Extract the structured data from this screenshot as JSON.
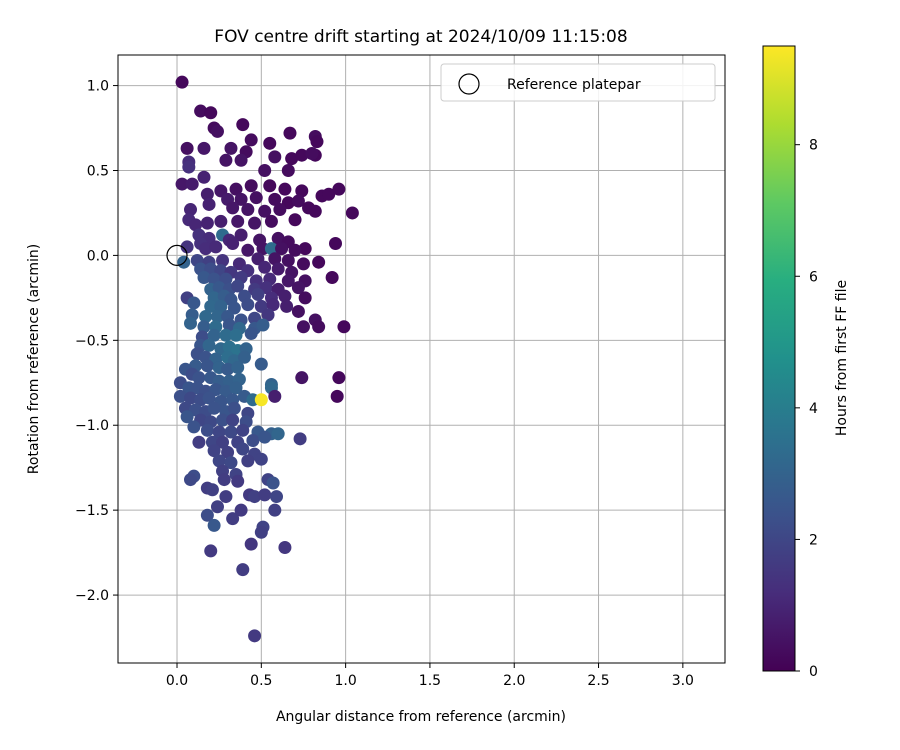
{
  "chart_data": {
    "type": "scatter",
    "title": "FOV centre drift starting at 2024/10/09 11:15:08",
    "xlabel": "Angular distance from reference (arcmin)",
    "ylabel": "Rotation from reference (arcmin)",
    "xlim": [
      -0.35,
      3.25
    ],
    "ylim": [
      -2.4,
      1.18
    ],
    "xticks": [
      0.0,
      0.5,
      1.0,
      1.5,
      2.0,
      2.5,
      3.0
    ],
    "xtick_labels": [
      "0.0",
      "0.5",
      "1.0",
      "1.5",
      "2.0",
      "2.5",
      "3.0"
    ],
    "yticks": [
      1.0,
      0.5,
      0.0,
      -0.5,
      -1.0,
      -1.5,
      -2.0
    ],
    "ytick_labels": [
      "1.0",
      "0.5",
      "0.0",
      "−0.5",
      "−1.0",
      "−1.5",
      "−2.0"
    ],
    "grid": true,
    "legend": {
      "position": "upper right",
      "entries": [
        {
          "label": "Reference platepar",
          "marker": "open circle",
          "x": 0.0,
          "y": 0.0
        }
      ]
    },
    "colorbar": {
      "label": "Hours from first FF file",
      "colormap": "viridis",
      "range": [
        0,
        9.5
      ],
      "ticks": [
        0,
        2,
        4,
        6,
        8
      ],
      "tick_labels": [
        "0",
        "2",
        "4",
        "6",
        "8"
      ]
    },
    "points": [
      [
        0.03,
        1.02,
        0.2
      ],
      [
        0.14,
        0.85,
        0.3
      ],
      [
        0.2,
        0.84,
        0.2
      ],
      [
        0.22,
        0.75,
        0.3
      ],
      [
        0.24,
        0.73,
        0.4
      ],
      [
        0.39,
        0.77,
        0.2
      ],
      [
        0.67,
        0.72,
        0.2
      ],
      [
        0.82,
        0.7,
        0.3
      ],
      [
        0.83,
        0.67,
        0.2
      ],
      [
        0.32,
        0.63,
        0.5
      ],
      [
        0.41,
        0.61,
        0.3
      ],
      [
        0.06,
        0.63,
        0.4
      ],
      [
        0.16,
        0.63,
        0.6
      ],
      [
        0.44,
        0.68,
        0.3
      ],
      [
        0.55,
        0.66,
        0.2
      ],
      [
        0.58,
        0.58,
        0.4
      ],
      [
        0.68,
        0.57,
        0.2
      ],
      [
        0.74,
        0.59,
        0.2
      ],
      [
        0.82,
        0.59,
        0.2
      ],
      [
        0.8,
        0.6,
        0.3
      ],
      [
        0.07,
        0.55,
        1.2
      ],
      [
        0.07,
        0.52,
        1.3
      ],
      [
        0.29,
        0.56,
        0.5
      ],
      [
        0.38,
        0.56,
        0.5
      ],
      [
        0.52,
        0.5,
        0.4
      ],
      [
        0.66,
        0.5,
        0.3
      ],
      [
        0.03,
        0.42,
        0.6
      ],
      [
        0.09,
        0.42,
        0.7
      ],
      [
        0.16,
        0.46,
        0.9
      ],
      [
        0.26,
        0.38,
        0.6
      ],
      [
        0.35,
        0.39,
        0.4
      ],
      [
        0.44,
        0.41,
        0.3
      ],
      [
        0.55,
        0.41,
        0.2
      ],
      [
        0.64,
        0.39,
        0.2
      ],
      [
        0.74,
        0.38,
        0.2
      ],
      [
        0.86,
        0.35,
        0.2
      ],
      [
        0.9,
        0.36,
        0.2
      ],
      [
        0.96,
        0.39,
        0.2
      ],
      [
        0.18,
        0.36,
        0.8
      ],
      [
        0.3,
        0.33,
        0.7
      ],
      [
        0.38,
        0.33,
        0.5
      ],
      [
        0.47,
        0.34,
        0.4
      ],
      [
        0.58,
        0.33,
        0.3
      ],
      [
        0.66,
        0.31,
        0.2
      ],
      [
        0.72,
        0.32,
        0.3
      ],
      [
        0.08,
        0.27,
        1.0
      ],
      [
        0.19,
        0.3,
        0.9
      ],
      [
        0.33,
        0.28,
        0.6
      ],
      [
        0.42,
        0.27,
        0.5
      ],
      [
        0.52,
        0.26,
        0.4
      ],
      [
        0.61,
        0.27,
        0.3
      ],
      [
        0.78,
        0.28,
        0.2
      ],
      [
        0.82,
        0.26,
        0.2
      ],
      [
        1.04,
        0.25,
        0.2
      ],
      [
        0.07,
        0.21,
        1.1
      ],
      [
        0.11,
        0.18,
        1.0
      ],
      [
        0.18,
        0.19,
        0.9
      ],
      [
        0.26,
        0.2,
        0.8
      ],
      [
        0.36,
        0.2,
        0.6
      ],
      [
        0.46,
        0.19,
        0.5
      ],
      [
        0.56,
        0.2,
        0.3
      ],
      [
        0.7,
        0.21,
        0.2
      ],
      [
        0.13,
        0.12,
        1.3
      ],
      [
        0.19,
        0.1,
        1.2
      ],
      [
        0.27,
        0.12,
        3.3
      ],
      [
        0.31,
        0.09,
        1.0
      ],
      [
        0.38,
        0.12,
        0.8
      ],
      [
        0.49,
        0.09,
        0.5
      ],
      [
        0.6,
        0.1,
        0.4
      ],
      [
        0.66,
        0.08,
        0.3
      ],
      [
        0.76,
        0.04,
        0.2
      ],
      [
        0.94,
        0.07,
        0.2
      ],
      [
        0.06,
        0.05,
        1.4
      ],
      [
        0.14,
        0.07,
        1.3
      ],
      [
        0.17,
        0.04,
        1.2
      ],
      [
        0.23,
        0.05,
        1.1
      ],
      [
        0.33,
        0.07,
        0.9
      ],
      [
        0.42,
        0.03,
        0.6
      ],
      [
        0.51,
        0.04,
        0.5
      ],
      [
        0.56,
        0.04,
        3.3
      ],
      [
        0.62,
        0.04,
        0.4
      ],
      [
        0.7,
        0.03,
        0.3
      ],
      [
        0.04,
        -0.04,
        3.0
      ],
      [
        0.12,
        -0.03,
        2.0
      ],
      [
        0.19,
        -0.04,
        1.8
      ],
      [
        0.27,
        -0.03,
        1.4
      ],
      [
        0.37,
        -0.05,
        1.1
      ],
      [
        0.48,
        -0.02,
        0.8
      ],
      [
        0.58,
        -0.02,
        0.5
      ],
      [
        0.66,
        -0.03,
        0.4
      ],
      [
        0.75,
        -0.05,
        0.3
      ],
      [
        0.84,
        -0.04,
        0.2
      ],
      [
        0.14,
        -0.08,
        2.4
      ],
      [
        0.2,
        -0.08,
        2.2
      ],
      [
        0.26,
        -0.09,
        2.0
      ],
      [
        0.32,
        -0.1,
        1.5
      ],
      [
        0.42,
        -0.09,
        1.3
      ],
      [
        0.52,
        -0.07,
        1.0
      ],
      [
        0.6,
        -0.08,
        0.7
      ],
      [
        0.68,
        -0.1,
        0.5
      ],
      [
        0.16,
        -0.13,
        2.6
      ],
      [
        0.22,
        -0.14,
        2.4
      ],
      [
        0.29,
        -0.14,
        2.2
      ],
      [
        0.38,
        -0.13,
        1.6
      ],
      [
        0.47,
        -0.15,
        1.3
      ],
      [
        0.55,
        -0.14,
        1.1
      ],
      [
        0.66,
        -0.15,
        0.6
      ],
      [
        0.76,
        -0.15,
        0.4
      ],
      [
        0.92,
        -0.13,
        0.2
      ],
      [
        0.2,
        -0.2,
        3.0
      ],
      [
        0.25,
        -0.19,
        2.6
      ],
      [
        0.31,
        -0.2,
        2.3
      ],
      [
        0.36,
        -0.18,
        2.0
      ],
      [
        0.46,
        -0.2,
        1.6
      ],
      [
        0.53,
        -0.19,
        1.3
      ],
      [
        0.6,
        -0.2,
        0.8
      ],
      [
        0.72,
        -0.19,
        0.5
      ],
      [
        0.22,
        -0.25,
        3.1
      ],
      [
        0.28,
        -0.24,
        2.8
      ],
      [
        0.32,
        -0.26,
        2.5
      ],
      [
        0.4,
        -0.24,
        2.2
      ],
      [
        0.48,
        -0.23,
        1.8
      ],
      [
        0.56,
        -0.25,
        1.2
      ],
      [
        0.64,
        -0.24,
        0.8
      ],
      [
        0.76,
        -0.25,
        0.3
      ],
      [
        0.06,
        -0.25,
        1.8
      ],
      [
        0.1,
        -0.28,
        2.6
      ],
      [
        0.2,
        -0.3,
        3.2
      ],
      [
        0.26,
        -0.3,
        3.0
      ],
      [
        0.34,
        -0.31,
        2.5
      ],
      [
        0.42,
        -0.29,
        2.2
      ],
      [
        0.5,
        -0.3,
        1.6
      ],
      [
        0.57,
        -0.29,
        1.1
      ],
      [
        0.65,
        -0.3,
        0.8
      ],
      [
        0.72,
        -0.33,
        0.4
      ],
      [
        0.09,
        -0.35,
        2.8
      ],
      [
        0.17,
        -0.36,
        3.2
      ],
      [
        0.24,
        -0.36,
        3.1
      ],
      [
        0.3,
        -0.36,
        2.6
      ],
      [
        0.38,
        -0.38,
        2.4
      ],
      [
        0.46,
        -0.37,
        2.0
      ],
      [
        0.54,
        -0.35,
        1.5
      ],
      [
        0.82,
        -0.38,
        0.4
      ],
      [
        0.08,
        -0.4,
        3.0
      ],
      [
        0.16,
        -0.42,
        2.8
      ],
      [
        0.23,
        -0.42,
        3.3
      ],
      [
        0.31,
        -0.41,
        2.5
      ],
      [
        0.37,
        -0.43,
        3.2
      ],
      [
        0.46,
        -0.43,
        2.6
      ],
      [
        0.51,
        -0.41,
        2.8
      ],
      [
        0.15,
        -0.48,
        2.2
      ],
      [
        0.22,
        -0.47,
        3.0
      ],
      [
        0.29,
        -0.47,
        3.3
      ],
      [
        0.35,
        -0.47,
        3.4
      ],
      [
        0.44,
        -0.46,
        2.5
      ],
      [
        0.75,
        -0.42,
        0.4
      ],
      [
        0.84,
        -0.42,
        0.3
      ],
      [
        0.99,
        -0.42,
        0.2
      ],
      [
        0.14,
        -0.53,
        2.5
      ],
      [
        0.19,
        -0.53,
        3.1
      ],
      [
        0.26,
        -0.55,
        3.2
      ],
      [
        0.31,
        -0.54,
        3.5
      ],
      [
        0.36,
        -0.56,
        3.6
      ],
      [
        0.41,
        -0.55,
        3.0
      ],
      [
        0.12,
        -0.58,
        2.3
      ],
      [
        0.17,
        -0.6,
        2.4
      ],
      [
        0.23,
        -0.61,
        3.0
      ],
      [
        0.3,
        -0.6,
        3.4
      ],
      [
        0.34,
        -0.62,
        3.2
      ],
      [
        0.4,
        -0.6,
        2.9
      ],
      [
        0.11,
        -0.65,
        2.7
      ],
      [
        0.18,
        -0.65,
        2.5
      ],
      [
        0.25,
        -0.66,
        3.0
      ],
      [
        0.3,
        -0.67,
        2.7
      ],
      [
        0.36,
        -0.66,
        3.0
      ],
      [
        0.5,
        -0.64,
        2.7
      ],
      [
        0.05,
        -0.67,
        2.5
      ],
      [
        0.09,
        -0.7,
        2.2
      ],
      [
        0.13,
        -0.72,
        2.4
      ],
      [
        0.2,
        -0.72,
        2.6
      ],
      [
        0.25,
        -0.74,
        2.8
      ],
      [
        0.31,
        -0.74,
        2.9
      ],
      [
        0.37,
        -0.73,
        3.0
      ],
      [
        0.74,
        -0.72,
        0.5
      ],
      [
        0.96,
        -0.72,
        0.2
      ],
      [
        0.02,
        -0.75,
        2.2
      ],
      [
        0.07,
        -0.78,
        2.5
      ],
      [
        0.12,
        -0.78,
        2.4
      ],
      [
        0.17,
        -0.8,
        2.3
      ],
      [
        0.23,
        -0.79,
        2.5
      ],
      [
        0.29,
        -0.8,
        2.7
      ],
      [
        0.35,
        -0.78,
        2.9
      ],
      [
        0.56,
        -0.76,
        3.0
      ],
      [
        0.56,
        -0.78,
        3.2
      ],
      [
        0.02,
        -0.83,
        2.3
      ],
      [
        0.08,
        -0.84,
        2.1
      ],
      [
        0.14,
        -0.85,
        2.2
      ],
      [
        0.19,
        -0.84,
        2.4
      ],
      [
        0.26,
        -0.86,
        2.5
      ],
      [
        0.33,
        -0.85,
        2.6
      ],
      [
        0.4,
        -0.83,
        2.7
      ],
      [
        0.45,
        -0.85,
        3.3
      ],
      [
        0.5,
        -0.85,
        9.4
      ],
      [
        0.58,
        -0.83,
        0.8
      ],
      [
        0.95,
        -0.83,
        0.2
      ],
      [
        0.05,
        -0.9,
        2.1
      ],
      [
        0.11,
        -0.91,
        2.3
      ],
      [
        0.17,
        -0.92,
        2.2
      ],
      [
        0.22,
        -0.9,
        2.4
      ],
      [
        0.29,
        -0.92,
        2.5
      ],
      [
        0.34,
        -0.9,
        2.3
      ],
      [
        0.42,
        -0.93,
        2.0
      ],
      [
        0.06,
        -0.95,
        2.5
      ],
      [
        0.14,
        -0.97,
        2.0
      ],
      [
        0.2,
        -0.98,
        2.1
      ],
      [
        0.27,
        -0.97,
        2.3
      ],
      [
        0.33,
        -0.97,
        1.9
      ],
      [
        0.41,
        -0.98,
        2.2
      ],
      [
        0.1,
        -1.01,
        2.4
      ],
      [
        0.18,
        -1.03,
        2.2
      ],
      [
        0.25,
        -1.04,
        2.0
      ],
      [
        0.32,
        -1.04,
        2.1
      ],
      [
        0.39,
        -1.03,
        1.9
      ],
      [
        0.48,
        -1.04,
        2.6
      ],
      [
        0.56,
        -1.05,
        2.9
      ],
      [
        0.6,
        -1.05,
        3.1
      ],
      [
        0.13,
        -1.1,
        1.7
      ],
      [
        0.21,
        -1.1,
        2.0
      ],
      [
        0.27,
        -1.1,
        1.8
      ],
      [
        0.36,
        -1.1,
        1.9
      ],
      [
        0.45,
        -1.09,
        2.2
      ],
      [
        0.52,
        -1.07,
        2.5
      ],
      [
        0.73,
        -1.08,
        1.7
      ],
      [
        0.22,
        -1.15,
        1.9
      ],
      [
        0.3,
        -1.16,
        1.8
      ],
      [
        0.39,
        -1.14,
        2.0
      ],
      [
        0.46,
        -1.17,
        1.9
      ],
      [
        0.25,
        -1.21,
        2.0
      ],
      [
        0.32,
        -1.22,
        2.1
      ],
      [
        0.42,
        -1.21,
        1.8
      ],
      [
        0.5,
        -1.2,
        1.9
      ],
      [
        0.27,
        -1.27,
        1.8
      ],
      [
        0.35,
        -1.29,
        1.9
      ],
      [
        0.1,
        -1.3,
        2.2
      ],
      [
        0.08,
        -1.32,
        2.1
      ],
      [
        0.28,
        -1.32,
        1.7
      ],
      [
        0.36,
        -1.33,
        1.6
      ],
      [
        0.54,
        -1.32,
        1.9
      ],
      [
        0.57,
        -1.34,
        2.4
      ],
      [
        0.18,
        -1.37,
        1.7
      ],
      [
        0.21,
        -1.38,
        1.8
      ],
      [
        0.29,
        -1.42,
        1.7
      ],
      [
        0.43,
        -1.41,
        1.6
      ],
      [
        0.46,
        -1.42,
        1.8
      ],
      [
        0.52,
        -1.41,
        1.7
      ],
      [
        0.59,
        -1.42,
        2.0
      ],
      [
        0.24,
        -1.48,
        1.8
      ],
      [
        0.33,
        -1.55,
        1.7
      ],
      [
        0.38,
        -1.5,
        1.6
      ],
      [
        0.58,
        -1.5,
        1.8
      ],
      [
        0.18,
        -1.53,
        2.2
      ],
      [
        0.22,
        -1.59,
        2.6
      ],
      [
        0.51,
        -1.6,
        1.9
      ],
      [
        0.5,
        -1.63,
        1.8
      ],
      [
        0.44,
        -1.7,
        1.5
      ],
      [
        0.64,
        -1.72,
        1.5
      ],
      [
        0.2,
        -1.74,
        1.6
      ],
      [
        0.39,
        -1.85,
        1.7
      ],
      [
        0.46,
        -2.24,
        1.6
      ]
    ]
  }
}
